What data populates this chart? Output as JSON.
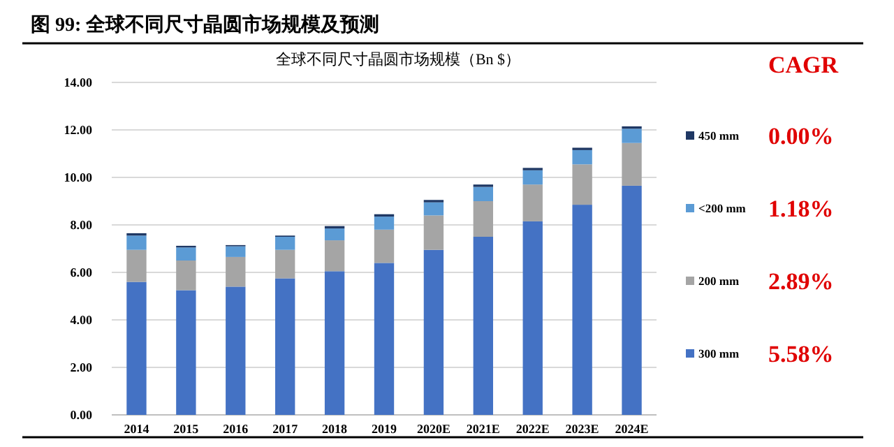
{
  "chart_data": {
    "type": "bar",
    "title": "图 99: 全球不同尺寸晶圆市场规模及预测",
    "subtitle": "全球不同尺寸晶圆市场规模（Bn $）",
    "categories": [
      "2014",
      "2015",
      "2016",
      "2017",
      "2018",
      "2019",
      "2020E",
      "2021E",
      "2022E",
      "2023E",
      "2024E"
    ],
    "stacked": true,
    "series": [
      {
        "name": "300 mm",
        "color": "#4472c4",
        "values": [
          5.6,
          5.25,
          5.4,
          5.75,
          6.05,
          6.4,
          6.95,
          7.5,
          8.15,
          8.85,
          9.65
        ]
      },
      {
        "name": "200 mm",
        "color": "#a5a5a5",
        "values": [
          1.35,
          1.25,
          1.25,
          1.2,
          1.3,
          1.4,
          1.45,
          1.5,
          1.55,
          1.7,
          1.8
        ]
      },
      {
        "name": "<200 mm",
        "color": "#5b9bd5",
        "values": [
          0.6,
          0.55,
          0.45,
          0.55,
          0.5,
          0.55,
          0.55,
          0.6,
          0.6,
          0.6,
          0.6
        ]
      },
      {
        "name": "450 mm",
        "color": "#1f3864",
        "values": [
          0.1,
          0.07,
          0.05,
          0.05,
          0.1,
          0.1,
          0.1,
          0.1,
          0.1,
          0.1,
          0.1
        ]
      }
    ],
    "ylim": [
      0,
      14
    ],
    "yticks": [
      {
        "value": 0,
        "label": "0.00"
      },
      {
        "value": 2,
        "label": "2.00"
      },
      {
        "value": 4,
        "label": "4.00"
      },
      {
        "value": 6,
        "label": "6.00"
      },
      {
        "value": 8,
        "label": "8.00"
      },
      {
        "value": 10,
        "label": "10.00"
      },
      {
        "value": 12,
        "label": "12.00"
      },
      {
        "value": 14,
        "label": "14.00"
      }
    ],
    "grid": "y",
    "legend": "right",
    "annotations": [
      "CAGR",
      "5.58%",
      "2.89%",
      "1.18%",
      "0.00%"
    ]
  }
}
